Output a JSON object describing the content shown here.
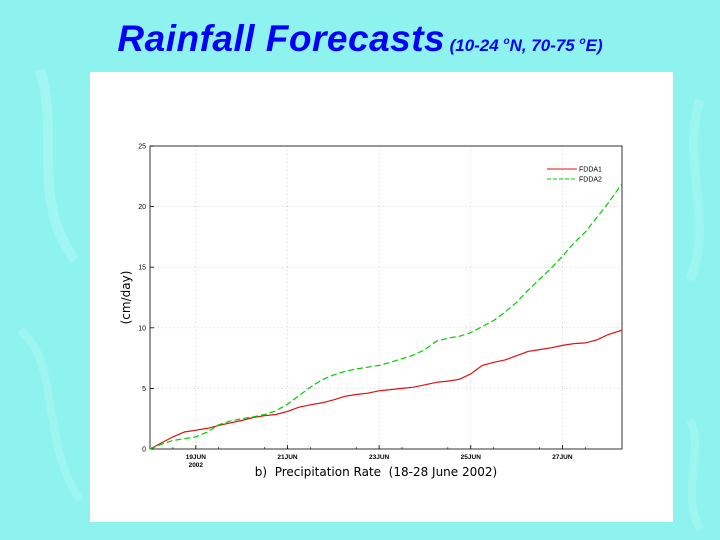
{
  "slide": {
    "title_main": "Rainfall Forecasts",
    "title_open": "(10-24 ",
    "title_deg1": "o",
    "title_mid": "N, 70-75 ",
    "title_deg2": "o",
    "title_close": "E)"
  },
  "colors": {
    "background": "#8ef3ef",
    "title": "#0000ff",
    "fdda1": "#e01010",
    "fdda2": "#00cc00"
  },
  "chart_data": {
    "type": "line",
    "title": "",
    "xlabel": "b)  Precipitation Rate  (18-28 June 2002)",
    "ylabel": "(cm/day)",
    "xlim": [
      0,
      10.3
    ],
    "ylim": [
      0,
      25
    ],
    "yticks": [
      0,
      5,
      10,
      15,
      20,
      25
    ],
    "xticks": [
      {
        "x": 1,
        "label": "19JUN",
        "sublabel": "2002"
      },
      {
        "x": 3,
        "label": "21JUN",
        "sublabel": ""
      },
      {
        "x": 5,
        "label": "23JUN",
        "sublabel": ""
      },
      {
        "x": 7,
        "label": "25JUN",
        "sublabel": ""
      },
      {
        "x": 9,
        "label": "27JUN",
        "sublabel": ""
      }
    ],
    "grid": true,
    "legend": "top-right",
    "series": [
      {
        "name": "FDDA1",
        "style": "solid",
        "x": [
          0,
          0.25,
          0.5,
          0.75,
          1.0,
          1.25,
          1.5,
          1.75,
          2.0,
          2.25,
          2.5,
          2.75,
          3.0,
          3.25,
          3.5,
          3.75,
          4.0,
          4.25,
          4.5,
          4.75,
          5.0,
          5.25,
          5.5,
          5.75,
          6.0,
          6.25,
          6.5,
          6.75,
          7.0,
          7.25,
          7.5,
          7.75,
          8.0,
          8.25,
          8.5,
          8.75,
          9.0,
          9.25,
          9.5,
          9.75,
          10.0,
          10.3
        ],
        "values": [
          0,
          0.5,
          1.0,
          1.4,
          1.55,
          1.7,
          1.95,
          2.15,
          2.35,
          2.6,
          2.75,
          2.85,
          3.1,
          3.45,
          3.65,
          3.8,
          4.05,
          4.35,
          4.5,
          4.6,
          4.8,
          4.9,
          5.0,
          5.1,
          5.3,
          5.5,
          5.6,
          5.75,
          6.2,
          6.9,
          7.15,
          7.35,
          7.7,
          8.05,
          8.2,
          8.35,
          8.55,
          8.7,
          8.75,
          9.0,
          9.45,
          9.8
        ]
      },
      {
        "name": "FDDA2",
        "style": "dashed",
        "x": [
          0,
          0.25,
          0.5,
          0.75,
          1.0,
          1.25,
          1.5,
          1.75,
          2.0,
          2.25,
          2.5,
          2.75,
          3.0,
          3.25,
          3.5,
          3.75,
          4.0,
          4.25,
          4.5,
          4.75,
          5.0,
          5.25,
          5.5,
          5.75,
          6.0,
          6.25,
          6.5,
          6.75,
          7.0,
          7.25,
          7.5,
          7.75,
          8.0,
          8.25,
          8.5,
          8.75,
          9.0,
          9.25,
          9.5,
          9.75,
          10.0,
          10.3
        ],
        "values": [
          0,
          0.4,
          0.7,
          0.85,
          1.0,
          1.4,
          2.0,
          2.3,
          2.5,
          2.65,
          2.85,
          3.15,
          3.7,
          4.4,
          5.1,
          5.7,
          6.1,
          6.4,
          6.6,
          6.75,
          6.9,
          7.15,
          7.45,
          7.75,
          8.2,
          8.9,
          9.15,
          9.3,
          9.6,
          10.1,
          10.6,
          11.3,
          12.1,
          13.1,
          14.0,
          14.9,
          15.9,
          17.0,
          17.9,
          19.1,
          20.3,
          21.9
        ]
      }
    ]
  }
}
